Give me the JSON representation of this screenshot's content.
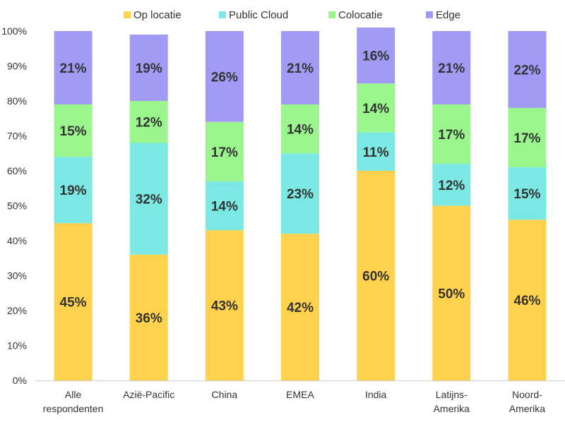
{
  "chart_data": {
    "type": "bar",
    "stacked": true,
    "categories": [
      [
        "Alle",
        "respondenten"
      ],
      [
        "Azië-Pacific"
      ],
      [
        "China"
      ],
      [
        "EMEA"
      ],
      [
        "India"
      ],
      [
        "Latijns-",
        "Amerika"
      ],
      [
        "Noord-",
        "Amerika"
      ]
    ],
    "series": [
      {
        "name": "Op locatie",
        "color": "#FFD24D",
        "values": [
          45,
          36,
          43,
          42,
          60,
          50,
          46
        ]
      },
      {
        "name": "Public Cloud",
        "color": "#7CE8E3",
        "values": [
          19,
          32,
          14,
          23,
          11,
          12,
          15
        ]
      },
      {
        "name": "Colocatie",
        "color": "#9AF58C",
        "values": [
          15,
          12,
          17,
          14,
          14,
          17,
          17
        ]
      },
      {
        "name": "Edge",
        "color": "#A29BF5",
        "values": [
          21,
          19,
          26,
          21,
          16,
          21,
          22
        ]
      }
    ],
    "ylim": [
      0,
      100
    ],
    "yticks": [
      "0%",
      "10%",
      "20%",
      "30%",
      "40%",
      "50%",
      "60%",
      "70%",
      "80%",
      "90%",
      "100%"
    ],
    "value_suffix": "%",
    "legend_position": "top",
    "grid": false
  }
}
